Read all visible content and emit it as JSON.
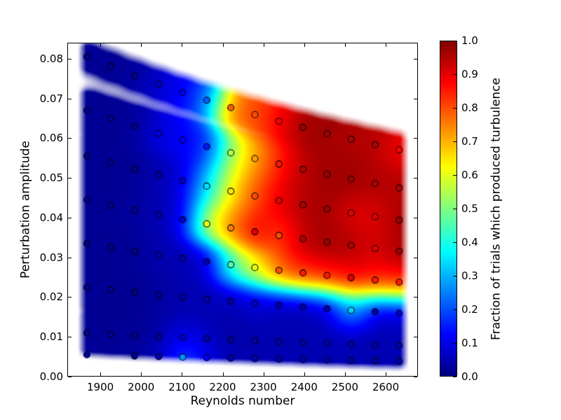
{
  "figure": {
    "background": "#ffffff",
    "title": ""
  },
  "chart_data": {
    "type": "heatmap",
    "subtype": "interpolated-scatter-field",
    "title": "",
    "xlabel": "Reynolds number",
    "ylabel": "Perturbation amplitude",
    "colorbar_label": "Fraction of trials which produced turbulence",
    "xlim": [
      1819,
      2679
    ],
    "ylim": [
      0,
      0.08405
    ],
    "colorbar_range": [
      0.0,
      1.0
    ],
    "grid": false,
    "colormap": "jet",
    "jet_stops": [
      [
        0.0,
        0,
        0,
        128
      ],
      [
        0.125,
        0,
        0,
        255
      ],
      [
        0.375,
        0,
        255,
        255
      ],
      [
        0.625,
        255,
        255,
        0
      ],
      [
        0.875,
        255,
        0,
        0
      ],
      [
        1.0,
        128,
        0,
        0
      ]
    ],
    "x_ticks": [
      {
        "value": 1900,
        "label": "1900"
      },
      {
        "value": 2000,
        "label": "2000"
      },
      {
        "value": 2100,
        "label": "2100"
      },
      {
        "value": 2200,
        "label": "2200"
      },
      {
        "value": 2300,
        "label": "2300"
      },
      {
        "value": 2400,
        "label": "2400"
      },
      {
        "value": 2500,
        "label": "2500"
      },
      {
        "value": 2600,
        "label": "2600"
      }
    ],
    "y_ticks": [
      {
        "value": 0.0,
        "label": "0.00"
      },
      {
        "value": 0.01,
        "label": "0.01"
      },
      {
        "value": 0.02,
        "label": "0.02"
      },
      {
        "value": 0.03,
        "label": "0.03"
      },
      {
        "value": 0.04,
        "label": "0.04"
      },
      {
        "value": 0.05,
        "label": "0.05"
      },
      {
        "value": 0.06,
        "label": "0.06"
      },
      {
        "value": 0.07,
        "label": "0.07"
      },
      {
        "value": 0.08,
        "label": "0.08"
      }
    ],
    "colorbar_ticks": [
      {
        "value": 0.0,
        "label": "0.0"
      },
      {
        "value": 0.1,
        "label": "0.1"
      },
      {
        "value": 0.2,
        "label": "0.2"
      },
      {
        "value": 0.3,
        "label": "0.3"
      },
      {
        "value": 0.4,
        "label": "0.4"
      },
      {
        "value": 0.5,
        "label": "0.5"
      },
      {
        "value": 0.6,
        "label": "0.6"
      },
      {
        "value": 0.7,
        "label": "0.7"
      },
      {
        "value": 0.8,
        "label": "0.8"
      },
      {
        "value": 0.9,
        "label": "0.9"
      },
      {
        "value": 1.0,
        "label": "1.0"
      }
    ],
    "columns_reynolds": [
      1867,
      1925,
      1984,
      2043,
      2102,
      2161,
      2220,
      2279,
      2338,
      2397,
      2456,
      2515,
      2574,
      2633
    ],
    "amplitude_rule": "amplitude = base_amplitude * 1867 / Re",
    "rows": [
      {
        "base_amplitude": 0.0055,
        "values": [
          0.03,
          null,
          0.03,
          0.05,
          0.27,
          0.12,
          0.05,
          0.05,
          0.05,
          0.05,
          0.05,
          0.05,
          0.05,
          0.05
        ]
      },
      {
        "base_amplitude": 0.011,
        "values": [
          0.02,
          0.02,
          0.02,
          0.03,
          0.08,
          0.05,
          0.03,
          0.05,
          0.05,
          0.05,
          0.05,
          0.05,
          0.05,
          0.05
        ]
      },
      {
        "base_amplitude": 0.0225,
        "values": [
          0.02,
          0.02,
          0.02,
          0.03,
          0.05,
          0.05,
          0.05,
          0.08,
          0.05,
          0.05,
          0.05,
          0.33,
          0.05,
          0.08
        ]
      },
      {
        "base_amplitude": 0.0335,
        "values": [
          0.02,
          0.02,
          0.02,
          0.05,
          0.05,
          0.05,
          0.45,
          0.6,
          0.8,
          0.85,
          0.85,
          0.9,
          0.85,
          0.85
        ]
      },
      {
        "base_amplitude": 0.0445,
        "values": [
          0.02,
          0.02,
          0.03,
          0.05,
          0.08,
          0.6,
          0.75,
          0.9,
          0.8,
          0.95,
          0.97,
          0.95,
          0.9,
          0.97
        ]
      },
      {
        "base_amplitude": 0.0555,
        "values": [
          0.02,
          0.02,
          0.02,
          0.05,
          0.08,
          0.35,
          0.65,
          0.8,
          0.9,
          0.95,
          0.97,
          0.9,
          0.9,
          0.97
        ]
      },
      {
        "base_amplitude": 0.067,
        "values": [
          0.02,
          0.02,
          0.02,
          0.1,
          0.12,
          0.15,
          0.55,
          0.72,
          0.85,
          0.95,
          0.97,
          0.97,
          0.95,
          0.95
        ]
      },
      {
        "base_amplitude": 0.0805,
        "values": [
          0.02,
          0.02,
          0.03,
          0.08,
          0.12,
          0.22,
          0.78,
          0.8,
          0.88,
          0.97,
          0.97,
          0.95,
          0.95,
          0.88
        ]
      }
    ],
    "marker_edge_color": "#000000"
  }
}
